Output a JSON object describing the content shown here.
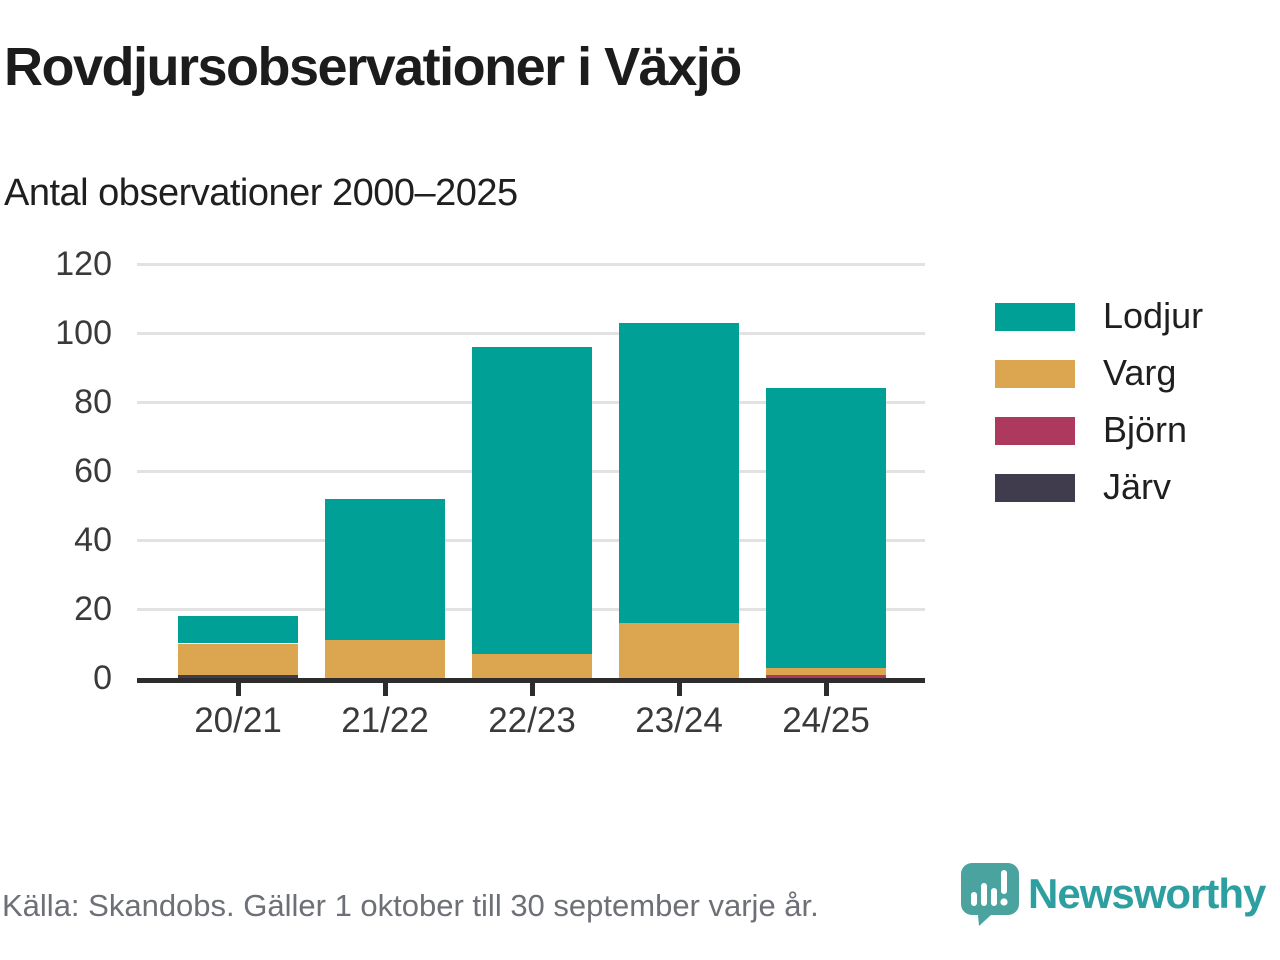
{
  "header": {
    "title": "Rovdjursobservationer i Växjö",
    "subtitle": "Antal observationer 2000–2025"
  },
  "footer": {
    "source": "Källa: Skandobs. Gäller 1 oktober till 30 september varje år.",
    "brand": "Newsworthy"
  },
  "colors": {
    "background": "#ffffff",
    "title_text": "#1c1c1c",
    "subtitle_text": "#1f1f1f",
    "axis_text": "#3a3a3a",
    "gridline": "#e2e2e2",
    "axis_line": "#2d2d2d",
    "footer_text": "#6d7076",
    "brand_teal": "#2d9fa1",
    "logo_teal": "#4aa39e"
  },
  "chart_data": {
    "type": "bar",
    "stacked": true,
    "title": "Rovdjursobservationer i Växjö",
    "subtitle": "Antal observationer 2000–2025",
    "xlabel": "",
    "ylabel": "",
    "categories": [
      "20/21",
      "21/22",
      "22/23",
      "23/24",
      "24/25"
    ],
    "series": [
      {
        "name": "Lodjur",
        "color": "#00a096",
        "values": [
          8,
          41,
          89,
          87,
          81
        ]
      },
      {
        "name": "Varg",
        "color": "#dba64f",
        "values": [
          9,
          11,
          7,
          16,
          2
        ]
      },
      {
        "name": "Björn",
        "color": "#ad3a5e",
        "values": [
          0,
          0,
          0,
          0,
          1
        ]
      },
      {
        "name": "Järv",
        "color": "#403c4e",
        "values": [
          1,
          0,
          0,
          0,
          0
        ]
      }
    ],
    "stack_order_bottom_to_top": [
      "Järv",
      "Björn",
      "Varg",
      "Lodjur"
    ],
    "totals": [
      18,
      52,
      96,
      103,
      84
    ],
    "ylim": [
      0,
      120
    ],
    "yticks": [
      0,
      20,
      40,
      60,
      80,
      100,
      120
    ],
    "grid": true,
    "legend_position": "right"
  }
}
